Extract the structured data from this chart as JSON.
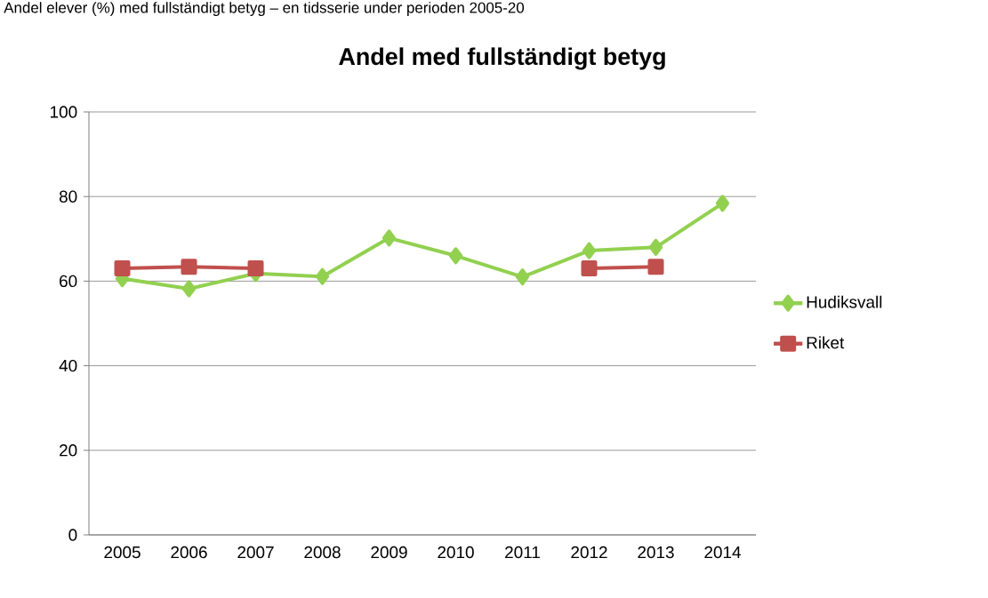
{
  "chart_data": {
    "type": "line",
    "title": "Andel med fullständigt betyg",
    "annotations": [
      "Andel elever (%) med fullständigt betyg – en tidsserie under perioden 2005-20"
    ],
    "categories": [
      "2005",
      "2006",
      "2007",
      "2008",
      "2009",
      "2010",
      "2011",
      "2012",
      "2013",
      "2014"
    ],
    "series": [
      {
        "name": "Hudiksvall",
        "color": "#92d050",
        "marker": "diamond",
        "values": [
          60.6,
          58.2,
          61.8,
          61.1,
          70.2,
          66,
          61,
          67.2,
          68,
          78.4
        ]
      },
      {
        "name": "Riket",
        "color": "#c0504d",
        "marker": "square",
        "values": [
          63,
          63.4,
          63,
          null,
          null,
          null,
          null,
          63,
          63.4,
          null
        ]
      }
    ],
    "ylim": [
      0,
      100
    ],
    "yticks": [
      0,
      20,
      40,
      60,
      80,
      100
    ],
    "grid": "y",
    "legend": "right",
    "line_style": "solid"
  }
}
